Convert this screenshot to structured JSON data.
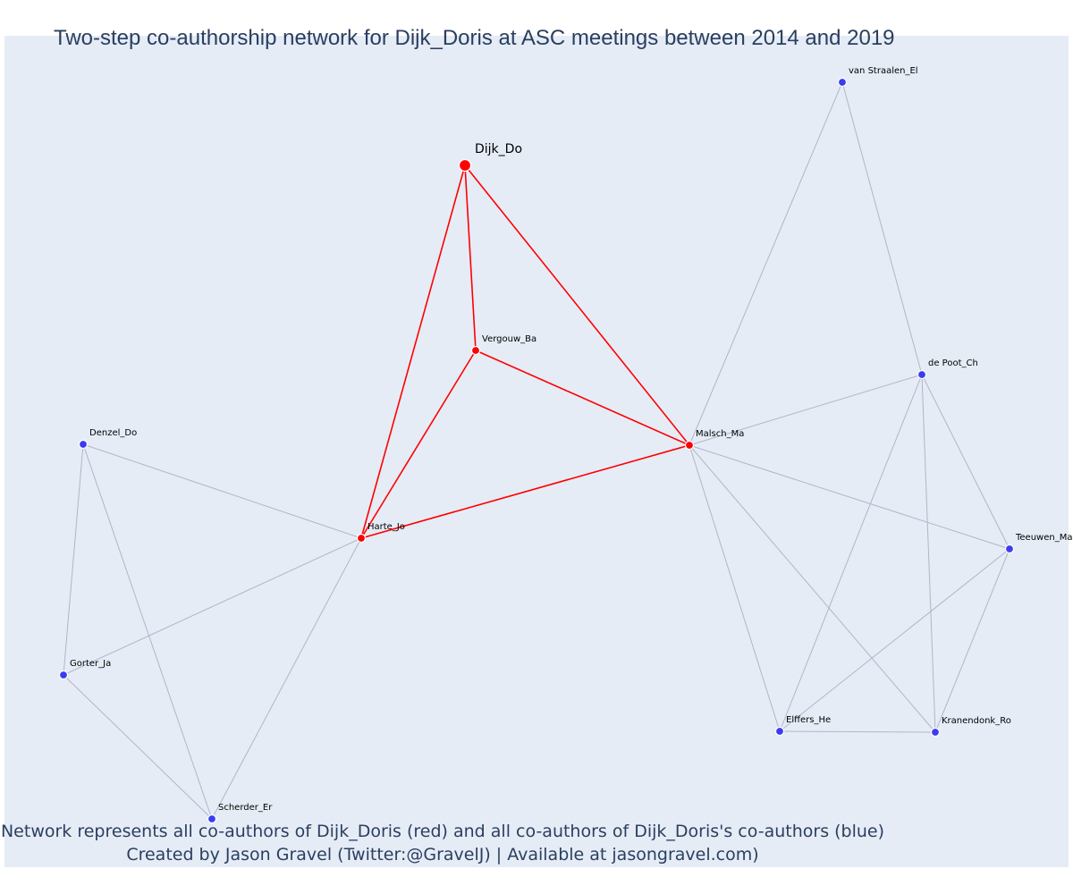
{
  "title": "Two-step co-authorship network for Dijk_Doris at ASC meetings between 2014 and 2019",
  "caption": {
    "line1": "Network represents all co-authors of Dijk_Doris (red) and all co-authors of Dijk_Doris's co-authors (blue)",
    "line2": "Created by Jason Gravel (Twitter:@GravelJ) | Available at jasongravel.com)"
  },
  "colors": {
    "plot_background": "#e5ecf6",
    "first_degree": "#ff0000",
    "second_degree": "#3b3bf0",
    "first_degree_edge": "#ff0000",
    "second_degree_edge": "#b4b4c8",
    "text": "#2a3f5f"
  },
  "nodes": [
    {
      "id": "Dijk_Do",
      "label": "Dijk_Do",
      "group": "focal"
    },
    {
      "id": "Vergouw_Ba",
      "label": "Vergouw_Ba",
      "group": "first"
    },
    {
      "id": "Malsch_Ma",
      "label": "Malsch_Ma",
      "group": "first"
    },
    {
      "id": "Harte_Jo",
      "label": "Harte_Jo",
      "group": "first"
    },
    {
      "id": "van Straalen_El",
      "label": "van Straalen_El",
      "group": "second"
    },
    {
      "id": "de Poot_Ch",
      "label": "de Poot_Ch",
      "group": "second"
    },
    {
      "id": "Teeuwen_Ma",
      "label": "Teeuwen_Ma",
      "group": "second"
    },
    {
      "id": "Elffers_He",
      "label": "Elffers_He",
      "group": "second"
    },
    {
      "id": "Kranendonk_Ro",
      "label": "Kranendonk_Ro",
      "group": "second"
    },
    {
      "id": "Denzel_Do",
      "label": "Denzel_Do",
      "group": "second"
    },
    {
      "id": "Gorter_Ja",
      "label": "Gorter_Ja",
      "group": "second"
    },
    {
      "id": "Scherder_Er",
      "label": "Scherder_Er",
      "group": "second"
    }
  ],
  "edges": [
    {
      "source": "Dijk_Do",
      "target": "Vergouw_Ba",
      "type": "first"
    },
    {
      "source": "Dijk_Do",
      "target": "Malsch_Ma",
      "type": "first"
    },
    {
      "source": "Dijk_Do",
      "target": "Harte_Jo",
      "type": "first"
    },
    {
      "source": "Vergouw_Ba",
      "target": "Malsch_Ma",
      "type": "first"
    },
    {
      "source": "Vergouw_Ba",
      "target": "Harte_Jo",
      "type": "first"
    },
    {
      "source": "Harte_Jo",
      "target": "Malsch_Ma",
      "type": "first"
    },
    {
      "source": "Malsch_Ma",
      "target": "van Straalen_El",
      "type": "second"
    },
    {
      "source": "Malsch_Ma",
      "target": "de Poot_Ch",
      "type": "second"
    },
    {
      "source": "Malsch_Ma",
      "target": "Teeuwen_Ma",
      "type": "second"
    },
    {
      "source": "Malsch_Ma",
      "target": "Elffers_He",
      "type": "second"
    },
    {
      "source": "Malsch_Ma",
      "target": "Kranendonk_Ro",
      "type": "second"
    },
    {
      "source": "van Straalen_El",
      "target": "de Poot_Ch",
      "type": "second"
    },
    {
      "source": "de Poot_Ch",
      "target": "Teeuwen_Ma",
      "type": "second"
    },
    {
      "source": "de Poot_Ch",
      "target": "Elffers_He",
      "type": "second"
    },
    {
      "source": "de Poot_Ch",
      "target": "Kranendonk_Ro",
      "type": "second"
    },
    {
      "source": "Teeuwen_Ma",
      "target": "Elffers_He",
      "type": "second"
    },
    {
      "source": "Teeuwen_Ma",
      "target": "Kranendonk_Ro",
      "type": "second"
    },
    {
      "source": "Elffers_He",
      "target": "Kranendonk_Ro",
      "type": "second"
    },
    {
      "source": "Harte_Jo",
      "target": "Denzel_Do",
      "type": "second"
    },
    {
      "source": "Harte_Jo",
      "target": "Gorter_Ja",
      "type": "second"
    },
    {
      "source": "Harte_Jo",
      "target": "Scherder_Er",
      "type": "second"
    },
    {
      "source": "Denzel_Do",
      "target": "Gorter_Ja",
      "type": "second"
    },
    {
      "source": "Denzel_Do",
      "target": "Scherder_Er",
      "type": "second"
    },
    {
      "source": "Gorter_Ja",
      "target": "Scherder_Er",
      "type": "second"
    }
  ]
}
